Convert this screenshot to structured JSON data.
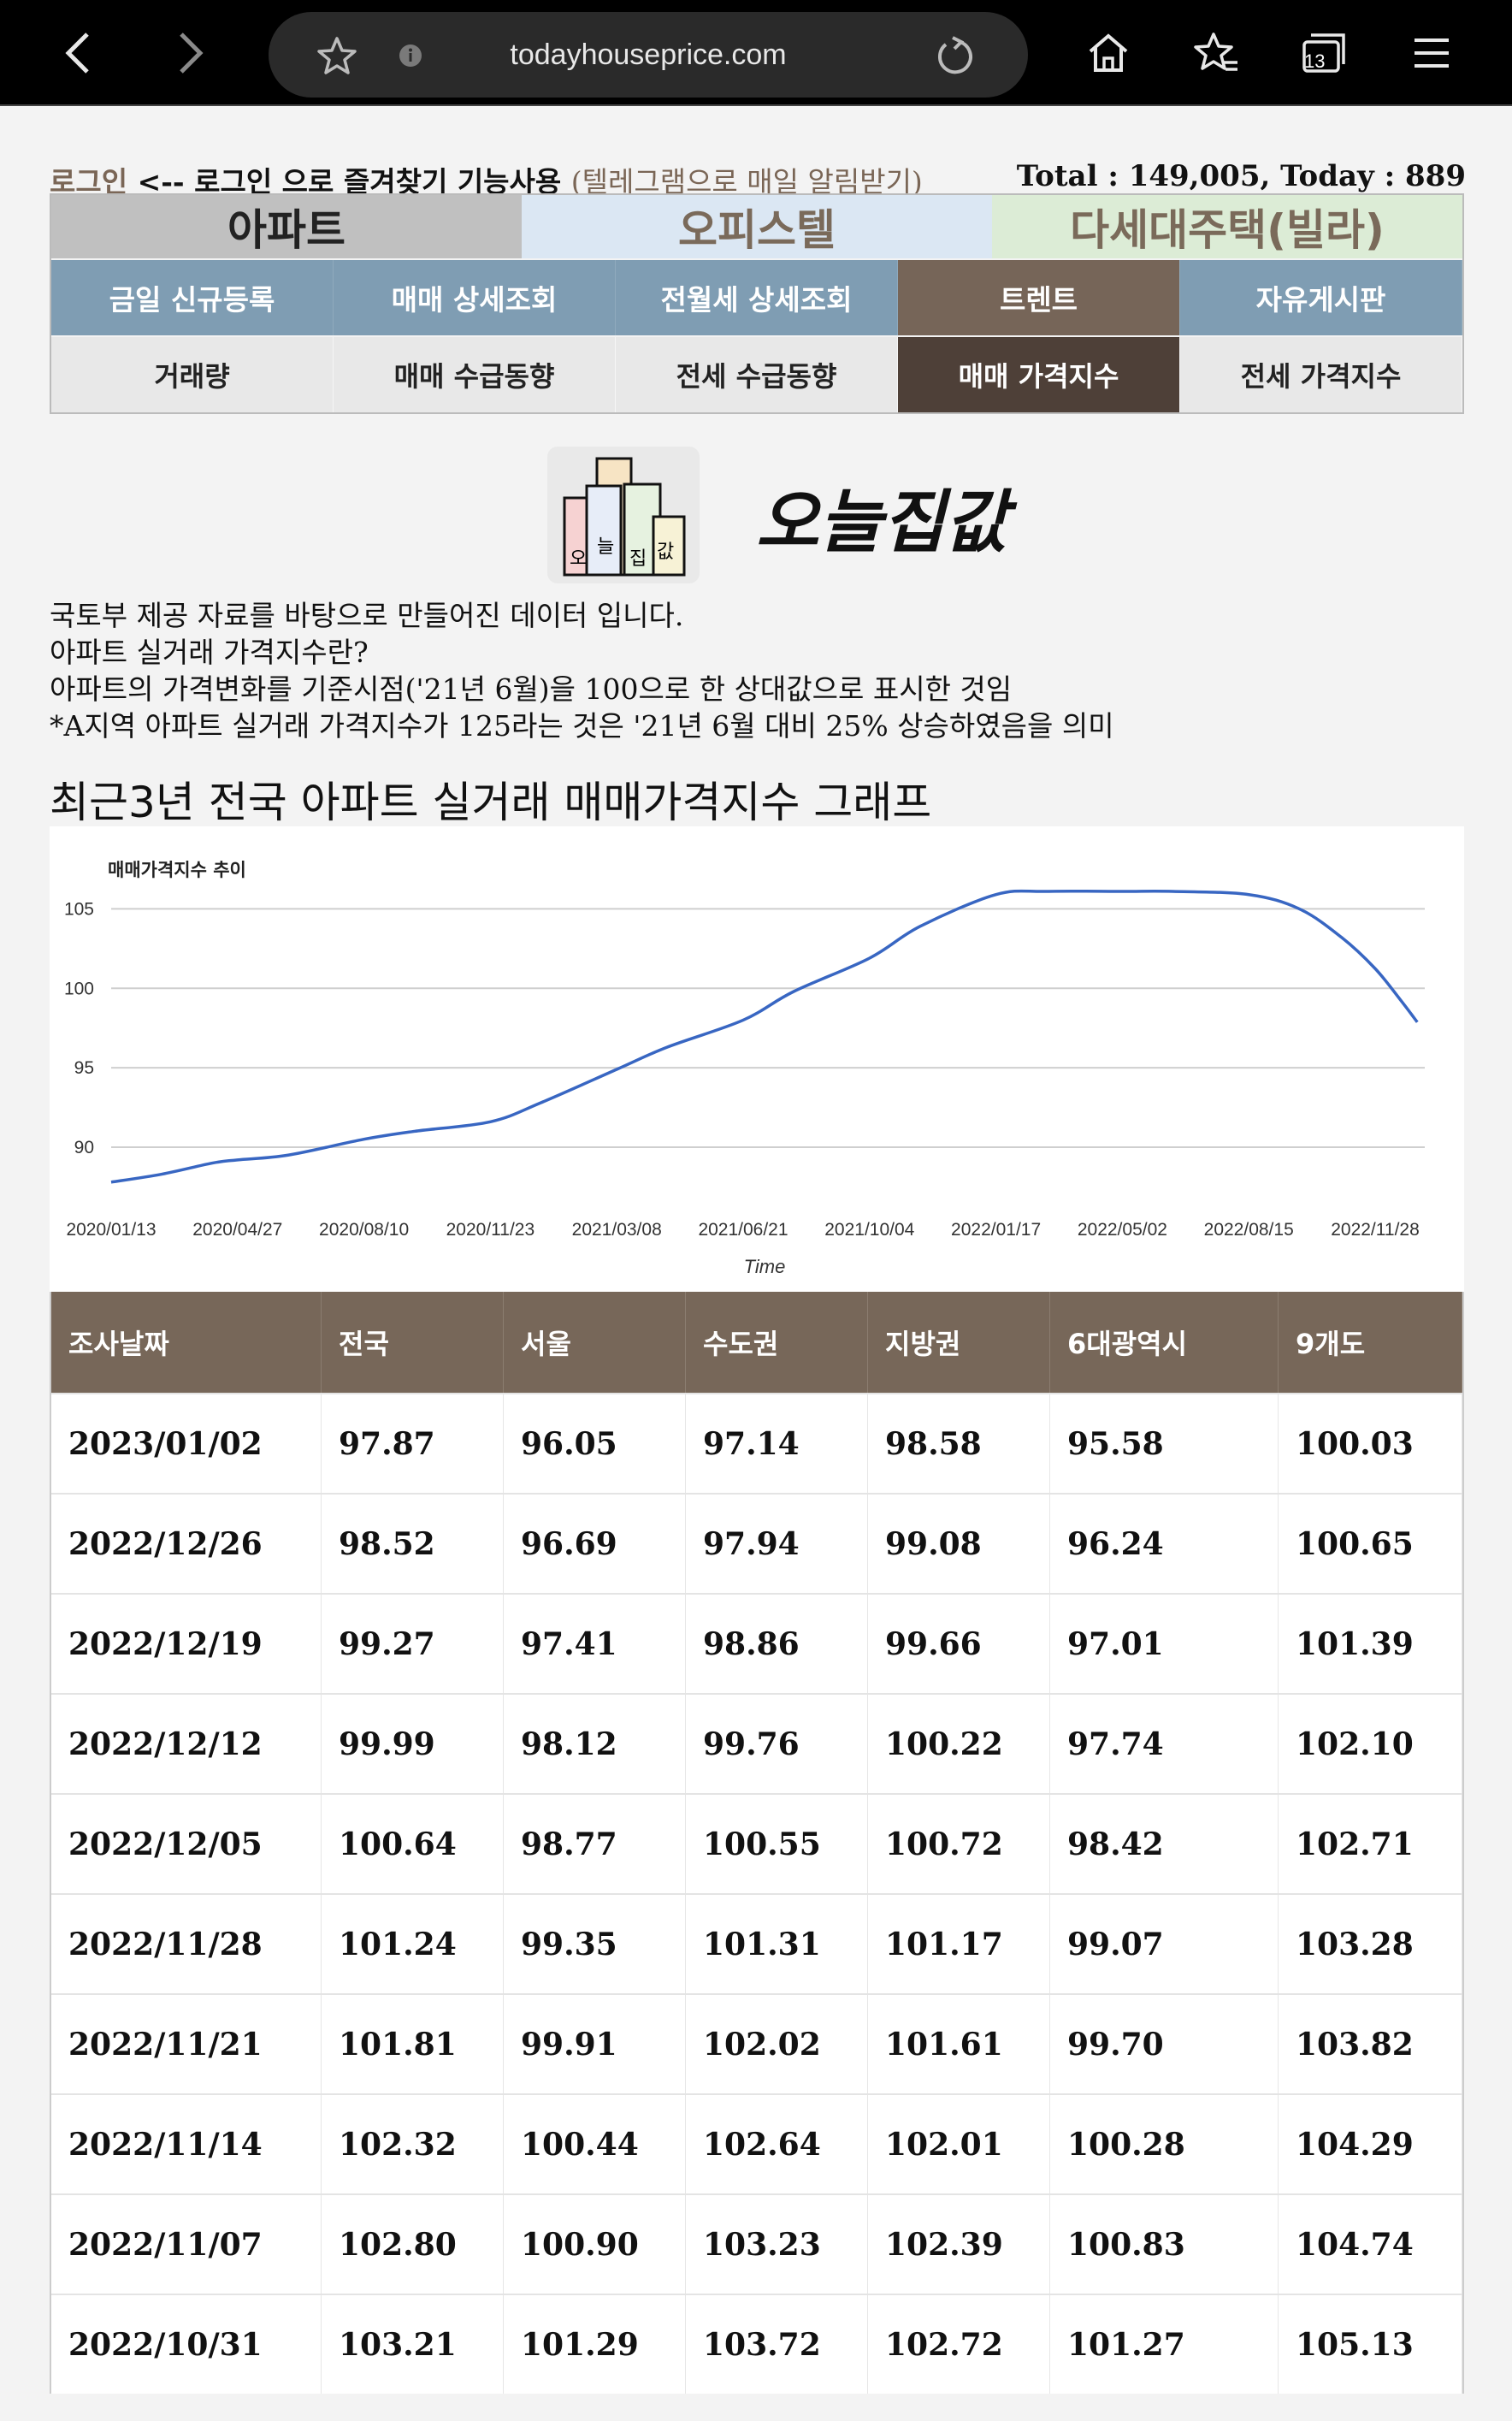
{
  "browser": {
    "url": "todayhouseprice.com",
    "tabs_count": "13"
  },
  "header": {
    "login_link": "로그인",
    "login_text": " <-- 로그인 으로 즐겨찾기 기능사용 ",
    "telegram_link": "(텔레그램으로 매일 알림받기)",
    "total": "Total : 149,005, Today : 889"
  },
  "categories": [
    "아파트",
    "오피스텔",
    "다세대주택(빌라)"
  ],
  "submenu": [
    "금일 신규등록",
    "매매 상세조회",
    "전월세 상세조회",
    "트렌트",
    "자유게시판"
  ],
  "submenu2": [
    "거래량",
    "매매 수급동향",
    "전세 수급동향",
    "매매 가격지수",
    "전세 가격지수"
  ],
  "logo": {
    "text": "오늘집값",
    "icon_letters": [
      "오",
      "늘",
      "집",
      "값"
    ]
  },
  "description": [
    "국토부 제공 자료를 바탕으로 만들어진 데이터 입니다.",
    "아파트 실거래 가격지수란?",
    "아파트의 가격변화를 기준시점('21년 6월)을 100으로 한 상대값으로 표시한 것임",
    "*A지역 아파트 실거래 가격지수가 125라는 것은 '21년 6월 대비 25% 상승하였음을 의미"
  ],
  "graph_title": "최근3년 전국 아파트 실거래 매매가격지수 그래프",
  "chart_data": {
    "type": "line",
    "title": "매매가격지수 추이",
    "xlabel": "Time",
    "ylabel": "",
    "x_ticks": [
      "2020/01/13",
      "2020/04/27",
      "2020/08/10",
      "2020/11/23",
      "2021/03/08",
      "2021/06/21",
      "2021/10/04",
      "2022/01/17",
      "2022/05/02",
      "2022/08/15",
      "2022/11/28"
    ],
    "y_ticks": [
      90,
      95,
      100,
      105
    ],
    "ylim": [
      86.5,
      107.5
    ],
    "x": [
      "2020/01/13",
      "2020/02/24",
      "2020/04/06",
      "2020/04/27",
      "2020/06/08",
      "2020/08/10",
      "2020/09/21",
      "2020/11/23",
      "2021/01/04",
      "2021/03/08",
      "2021/04/19",
      "2021/06/21",
      "2021/08/02",
      "2021/10/04",
      "2021/11/15",
      "2022/01/17",
      "2022/02/28",
      "2022/05/02",
      "2022/06/13",
      "2022/08/15",
      "2022/09/26",
      "2022/10/31",
      "2022/11/28",
      "2022/12/19",
      "2023/01/02"
    ],
    "series": [
      {
        "values": [
          87.8,
          88.3,
          89.0,
          89.2,
          89.5,
          90.5,
          91.0,
          91.6,
          92.8,
          94.9,
          96.3,
          98.0,
          99.8,
          101.9,
          103.9,
          105.9,
          106.1,
          106.1,
          106.1,
          105.9,
          105.0,
          103.21,
          101.24,
          99.27,
          97.87
        ],
        "color": "#3866c2"
      }
    ],
    "grid": true,
    "legend": "none"
  },
  "table": {
    "headers": [
      "조사날짜",
      "전국",
      "서울",
      "수도권",
      "지방권",
      "6대광역시",
      "9개도"
    ],
    "rows": [
      [
        "2023/01/02",
        "97.87",
        "96.05",
        "97.14",
        "98.58",
        "95.58",
        "100.03"
      ],
      [
        "2022/12/26",
        "98.52",
        "96.69",
        "97.94",
        "99.08",
        "96.24",
        "100.65"
      ],
      [
        "2022/12/19",
        "99.27",
        "97.41",
        "98.86",
        "99.66",
        "97.01",
        "101.39"
      ],
      [
        "2022/12/12",
        "99.99",
        "98.12",
        "99.76",
        "100.22",
        "97.74",
        "102.10"
      ],
      [
        "2022/12/05",
        "100.64",
        "98.77",
        "100.55",
        "100.72",
        "98.42",
        "102.71"
      ],
      [
        "2022/11/28",
        "101.24",
        "99.35",
        "101.31",
        "101.17",
        "99.07",
        "103.28"
      ],
      [
        "2022/11/21",
        "101.81",
        "99.91",
        "102.02",
        "101.61",
        "99.70",
        "103.82"
      ],
      [
        "2022/11/14",
        "102.32",
        "100.44",
        "102.64",
        "102.01",
        "100.28",
        "104.29"
      ],
      [
        "2022/11/07",
        "102.80",
        "100.90",
        "103.23",
        "102.39",
        "100.83",
        "104.74"
      ],
      [
        "2022/10/31",
        "103.21",
        "101.29",
        "103.72",
        "102.72",
        "101.27",
        "105.13"
      ]
    ]
  }
}
